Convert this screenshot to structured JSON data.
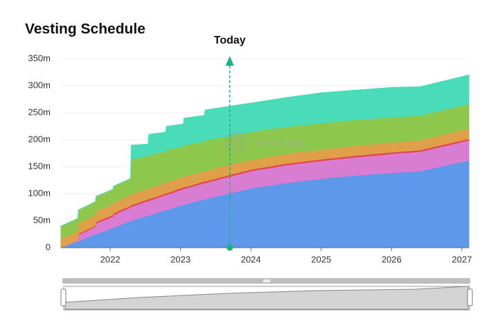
{
  "chart_data": {
    "type": "stacked_area",
    "title": "Vesting Schedule",
    "watermark": "DefiLlama",
    "today": {
      "label": "Today",
      "x": 2023.7
    },
    "x": [
      2021.3,
      2021.54,
      2021.55,
      2021.79,
      2021.8,
      2022.04,
      2022.05,
      2022.29,
      2022.3,
      2022.54,
      2022.55,
      2022.79,
      2022.8,
      2023.04,
      2023.05,
      2023.34,
      2023.35,
      2023.7,
      2024,
      2024.5,
      2025,
      2025.5,
      2026,
      2026.4,
      2027.1
    ],
    "series": [
      {
        "color": "#5e98ea",
        "values": [
          0,
          12000000,
          12000000,
          25000000,
          25000000,
          37000000,
          37000000,
          50000000,
          50000000,
          60000000,
          60000000,
          70000000,
          70000000,
          80000000,
          80000000,
          90000000,
          90000000,
          101000000,
          110000000,
          120000000,
          128000000,
          134000000,
          139000000,
          142000000,
          162000000
        ]
      },
      {
        "color": "#d97dd3",
        "values": [
          0,
          2000000,
          12000000,
          14000000,
          20000000,
          21000000,
          24000000,
          25000000,
          26000000,
          27000000,
          27000000,
          28000000,
          28000000,
          29000000,
          29000000,
          30000000,
          30000000,
          31000000,
          32000000,
          33000000,
          33000000,
          34000000,
          35000000,
          36000000,
          37000000
        ]
      },
      {
        "color": "#e5474d",
        "values": [
          0,
          0,
          2000000,
          2000000,
          3000000,
          3000000,
          3000000,
          3000000,
          3000000,
          3000000,
          3000000,
          3000000,
          3000000,
          3000000,
          3000000,
          3000000,
          3000000,
          3000000,
          3000000,
          3000000,
          3000000,
          3000000,
          3000000,
          3000000,
          3000000
        ]
      },
      {
        "color": "#e0a04a",
        "values": [
          17000000,
          17000000,
          20000000,
          20000000,
          20000000,
          20000000,
          20000000,
          20000000,
          20000000,
          20000000,
          20000000,
          20000000,
          20000000,
          20000000,
          20000000,
          19000000,
          19000000,
          19000000,
          18000000,
          18000000,
          18000000,
          18000000,
          18000000,
          18000000,
          19000000
        ]
      },
      {
        "color": "#8dc84c",
        "values": [
          23000000,
          23000000,
          24000000,
          24000000,
          27000000,
          27000000,
          30000000,
          30000000,
          65000000,
          60000000,
          62000000,
          58000000,
          60000000,
          56000000,
          58000000,
          55000000,
          57000000,
          53000000,
          52000000,
          50000000,
          49000000,
          48000000,
          47000000,
          46000000,
          45000000
        ]
      },
      {
        "color": "#4adbb9",
        "values": [
          0,
          0,
          0,
          0,
          0,
          0,
          0,
          0,
          26000000,
          22000000,
          38000000,
          35000000,
          44000000,
          41000000,
          50000000,
          48000000,
          56000000,
          55000000,
          53000000,
          54000000,
          56000000,
          55000000,
          55000000,
          53000000,
          54000000
        ]
      }
    ],
    "xlim": [
      2021.3,
      2027.1
    ],
    "xticks": [
      2022,
      2023,
      2024,
      2025,
      2026,
      2027
    ],
    "ylim": [
      0,
      350000000
    ],
    "yticks": [
      0,
      {
        "value": 50000000,
        "label": "50m"
      },
      {
        "value": 100000000,
        "label": "100m"
      },
      {
        "value": 150000000,
        "label": "150m"
      },
      {
        "value": 200000000,
        "label": "200m"
      },
      {
        "value": 250000000,
        "label": "250m"
      },
      {
        "value": 300000000,
        "label": "300m"
      },
      {
        "value": 350000000,
        "label": "350m"
      }
    ],
    "grid": true
  }
}
